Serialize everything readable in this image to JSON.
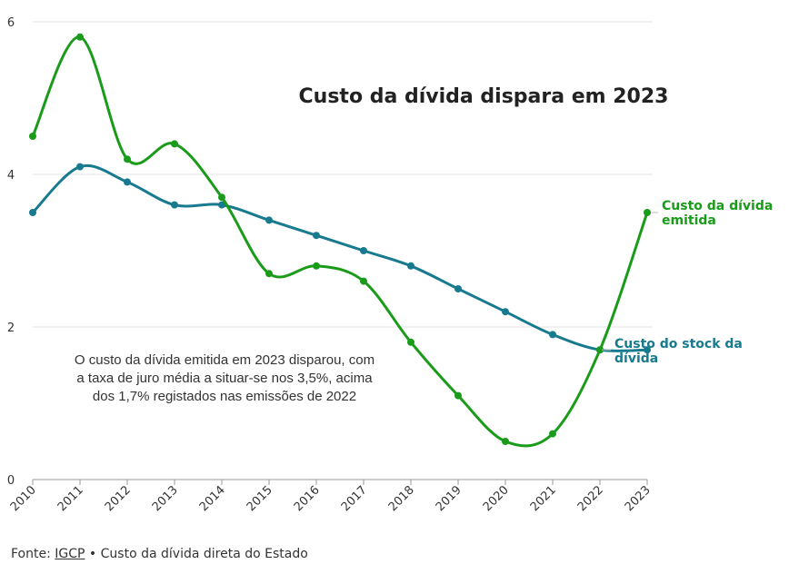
{
  "chart_data": {
    "type": "line",
    "title": "Custo da dívida dispara em 2023",
    "x": [
      "2010",
      "2011",
      "2012",
      "2013",
      "2014",
      "2015",
      "2016",
      "2017",
      "2018",
      "2019",
      "2020",
      "2021",
      "2022",
      "2023"
    ],
    "ylim": [
      0,
      6
    ],
    "yticks": [
      "0",
      "2",
      "4",
      "6"
    ],
    "grid": true,
    "series": [
      {
        "name": "Custo da dívida emitida",
        "color": "#1a9b1a",
        "values": [
          4.5,
          5.8,
          4.2,
          4.4,
          3.7,
          2.7,
          2.8,
          2.6,
          1.8,
          1.1,
          0.5,
          0.6,
          1.7,
          3.5
        ]
      },
      {
        "name": "Custo do stock da dívida",
        "color": "#187a8f",
        "values": [
          3.5,
          4.1,
          3.9,
          3.6,
          3.6,
          3.4,
          3.2,
          3.0,
          2.8,
          2.5,
          2.2,
          1.9,
          1.7,
          1.7
        ]
      }
    ],
    "series_labels": [
      {
        "lines": [
          "Custo da dívida",
          "emitida"
        ]
      },
      {
        "lines": [
          "Custo do stock da",
          "dívida"
        ]
      }
    ],
    "annotation": [
      "O custo da dívida emitida em 2023 disparou, com",
      "a taxa de juro média a situar-se nos 3,5%, acima",
      "dos 1,7% registados nas emissões de 2022"
    ]
  },
  "footer": {
    "prefix": "Fonte: ",
    "source_link": "IGCP",
    "separator": " • ",
    "description": "Custo da dívida direta do Estado"
  }
}
